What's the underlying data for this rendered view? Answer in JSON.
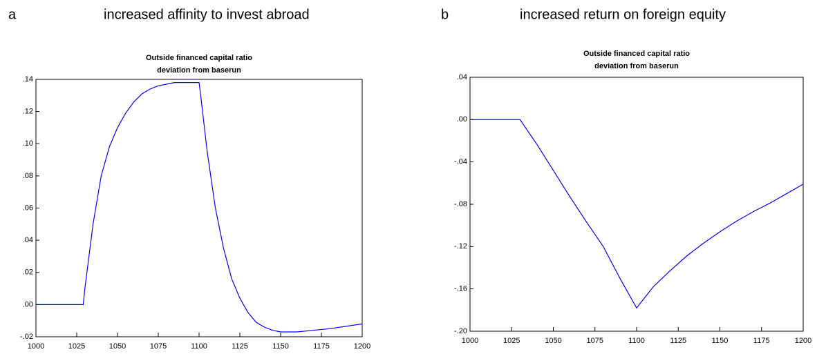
{
  "chart_data": [
    {
      "type": "line",
      "panel": "a",
      "heading": "increased affinity to invest abroad",
      "title": "Outside financed capital ratio",
      "subtitle": "deviation from baserun",
      "x": [
        1000,
        1029,
        1030,
        1035,
        1040,
        1045,
        1050,
        1055,
        1060,
        1065,
        1070,
        1075,
        1080,
        1085,
        1090,
        1095,
        1100,
        1101,
        1105,
        1110,
        1115,
        1120,
        1125,
        1130,
        1135,
        1140,
        1145,
        1150,
        1155,
        1160,
        1170,
        1180,
        1190,
        1200
      ],
      "values": [
        0,
        0,
        0.01,
        0.05,
        0.08,
        0.098,
        0.11,
        0.119,
        0.126,
        0.131,
        0.134,
        0.136,
        0.137,
        0.138,
        0.138,
        0.138,
        0.138,
        0.13,
        0.095,
        0.06,
        0.035,
        0.016,
        0.004,
        -0.005,
        -0.011,
        -0.014,
        -0.016,
        -0.017,
        -0.017,
        -0.017,
        -0.016,
        -0.015,
        -0.0135,
        -0.012
      ],
      "color": "#0000ff",
      "xlim": [
        1000,
        1200
      ],
      "xticks": [
        1000,
        1025,
        1050,
        1075,
        1100,
        1125,
        1150,
        1175,
        1200
      ],
      "ylim": [
        -0.02,
        0.14
      ],
      "yticks": [
        {
          "value": -0.02,
          "label": "-.02"
        },
        {
          "value": 0,
          "label": ".00"
        },
        {
          "value": 0.02,
          "label": ".02"
        },
        {
          "value": 0.04,
          "label": ".04"
        },
        {
          "value": 0.06,
          "label": ".06"
        },
        {
          "value": 0.08,
          "label": ".08"
        },
        {
          "value": 0.1,
          "label": ".10"
        },
        {
          "value": 0.12,
          "label": ".12"
        },
        {
          "value": 0.14,
          "label": ".14"
        }
      ]
    },
    {
      "type": "line",
      "panel": "b",
      "heading": "increased return on foreign equity",
      "title": "Outside financed capital ratio",
      "subtitle": "deviation from baserun",
      "x": [
        1000,
        1030,
        1040,
        1050,
        1060,
        1070,
        1080,
        1090,
        1100,
        1110,
        1120,
        1125,
        1130,
        1140,
        1150,
        1160,
        1170,
        1175,
        1180,
        1190,
        1200
      ],
      "values": [
        0,
        0,
        -0.023,
        -0.048,
        -0.073,
        -0.097,
        -0.12,
        -0.15,
        -0.178,
        -0.158,
        -0.143,
        -0.136,
        -0.129,
        -0.117,
        -0.106,
        -0.096,
        -0.087,
        -0.083,
        -0.079,
        -0.07,
        -0.061
      ],
      "color": "#0000ff",
      "xlim": [
        1000,
        1200
      ],
      "xticks": [
        1000,
        1025,
        1050,
        1075,
        1100,
        1125,
        1150,
        1175,
        1200
      ],
      "ylim": [
        -0.2,
        0.04
      ],
      "yticks": [
        {
          "value": -0.2,
          "label": "-.20"
        },
        {
          "value": -0.16,
          "label": "-.16"
        },
        {
          "value": -0.12,
          "label": "-.12"
        },
        {
          "value": -0.08,
          "label": "-.08"
        },
        {
          "value": -0.04,
          "label": "-.04"
        },
        {
          "value": 0,
          "label": ".00"
        },
        {
          "value": 0.04,
          "label": ".04"
        }
      ]
    }
  ]
}
